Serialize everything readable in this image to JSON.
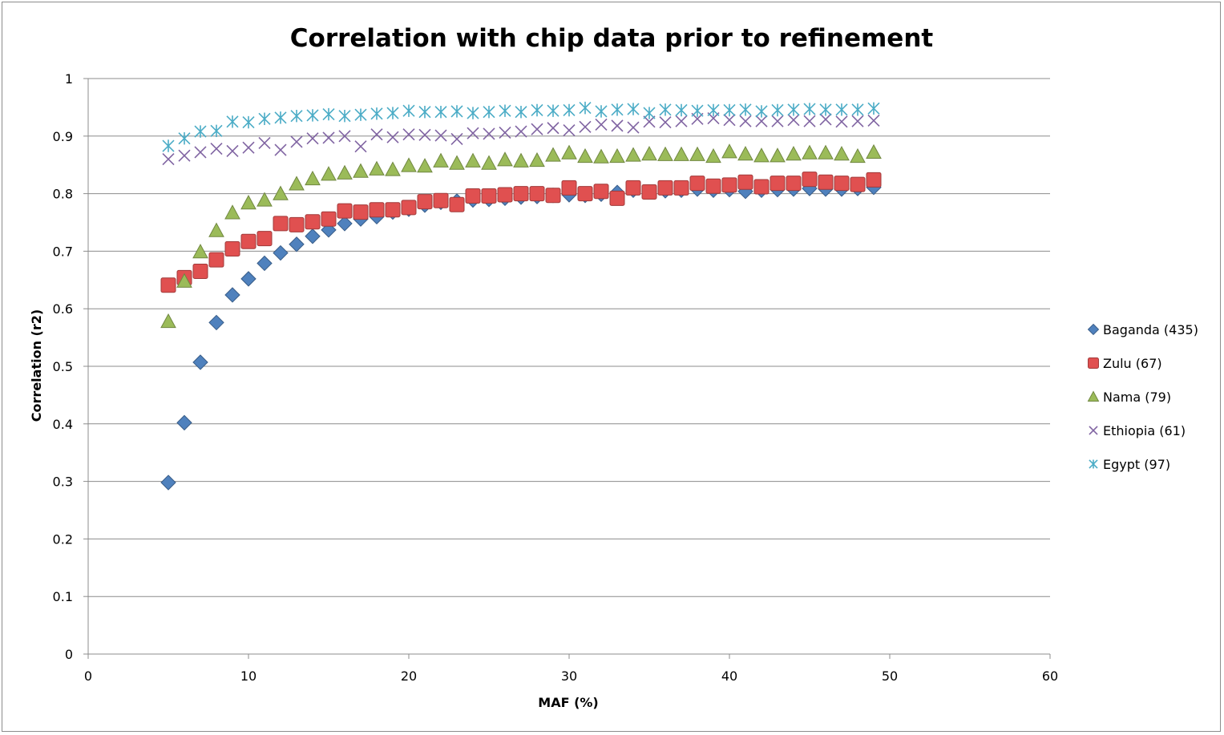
{
  "chart_data": {
    "type": "scatter",
    "title": "Correlation with chip data prior to refinement",
    "xlabel": "MAF (%)",
    "ylabel": "Correlation (r2)",
    "xlim": [
      0,
      60
    ],
    "ylim": [
      0,
      1
    ],
    "xticks": [
      "0",
      "10",
      "20",
      "30",
      "40",
      "50",
      "60"
    ],
    "yticks": [
      "0",
      "0.1",
      "0.2",
      "0.3",
      "0.4",
      "0.5",
      "0.6",
      "0.7",
      "0.8",
      "0.9",
      "1"
    ],
    "grid": "horizontal",
    "legend": "right",
    "x": [
      5,
      6,
      7,
      8,
      9,
      10,
      11,
      12,
      13,
      14,
      15,
      16,
      17,
      18,
      19,
      20,
      21,
      22,
      23,
      24,
      25,
      26,
      27,
      28,
      29,
      30,
      31,
      32,
      33,
      34,
      35,
      36,
      37,
      38,
      39,
      40,
      41,
      42,
      43,
      44,
      45,
      46,
      47,
      48,
      49
    ],
    "series": [
      {
        "name": "Baganda (435)",
        "marker": "diamond",
        "color": "#4f81bd",
        "values": [
          0.298,
          0.402,
          0.507,
          0.576,
          0.624,
          0.652,
          0.679,
          0.697,
          0.712,
          0.726,
          0.737,
          0.748,
          0.756,
          0.76,
          0.768,
          0.773,
          0.78,
          0.785,
          0.787,
          0.789,
          0.79,
          0.792,
          0.794,
          0.795,
          0.797,
          0.798,
          0.797,
          0.799,
          0.802,
          0.806,
          0.803,
          0.805,
          0.806,
          0.808,
          0.806,
          0.807,
          0.804,
          0.806,
          0.807,
          0.808,
          0.809,
          0.808,
          0.808,
          0.809,
          0.811
        ]
      },
      {
        "name": "Zulu (67)",
        "marker": "square",
        "color": "#e05050",
        "values": [
          0.641,
          0.654,
          0.665,
          0.685,
          0.704,
          0.717,
          0.722,
          0.748,
          0.746,
          0.751,
          0.756,
          0.77,
          0.768,
          0.772,
          0.772,
          0.776,
          0.786,
          0.788,
          0.781,
          0.796,
          0.796,
          0.798,
          0.8,
          0.8,
          0.797,
          0.81,
          0.8,
          0.804,
          0.792,
          0.81,
          0.803,
          0.81,
          0.81,
          0.818,
          0.813,
          0.815,
          0.82,
          0.812,
          0.818,
          0.818,
          0.825,
          0.82,
          0.818,
          0.816,
          0.824
        ]
      },
      {
        "name": "Nama (79)",
        "marker": "triangle",
        "color": "#9bbb59",
        "values": [
          0.578,
          0.648,
          0.699,
          0.736,
          0.767,
          0.784,
          0.789,
          0.8,
          0.817,
          0.826,
          0.834,
          0.836,
          0.839,
          0.843,
          0.842,
          0.849,
          0.848,
          0.857,
          0.853,
          0.857,
          0.853,
          0.859,
          0.857,
          0.858,
          0.867,
          0.871,
          0.865,
          0.864,
          0.865,
          0.867,
          0.869,
          0.868,
          0.868,
          0.868,
          0.865,
          0.873,
          0.869,
          0.866,
          0.866,
          0.869,
          0.871,
          0.871,
          0.869,
          0.865,
          0.872
        ]
      },
      {
        "name": "Ethiopia (61)",
        "marker": "x",
        "color": "#8064a2",
        "values": [
          0.86,
          0.866,
          0.872,
          0.878,
          0.874,
          0.88,
          0.888,
          0.876,
          0.89,
          0.896,
          0.897,
          0.9,
          0.882,
          0.903,
          0.898,
          0.903,
          0.902,
          0.901,
          0.895,
          0.905,
          0.904,
          0.906,
          0.908,
          0.912,
          0.914,
          0.91,
          0.916,
          0.92,
          0.918,
          0.915,
          0.925,
          0.924,
          0.926,
          0.93,
          0.931,
          0.928,
          0.926,
          0.926,
          0.926,
          0.928,
          0.926,
          0.929,
          0.925,
          0.926,
          0.927
        ]
      },
      {
        "name": "Egypt (97)",
        "marker": "asterisk",
        "color": "#4bacc6",
        "values": [
          0.883,
          0.896,
          0.908,
          0.909,
          0.925,
          0.924,
          0.93,
          0.932,
          0.935,
          0.936,
          0.938,
          0.935,
          0.937,
          0.939,
          0.94,
          0.944,
          0.942,
          0.942,
          0.943,
          0.94,
          0.942,
          0.944,
          0.942,
          0.945,
          0.944,
          0.945,
          0.949,
          0.943,
          0.946,
          0.947,
          0.94,
          0.946,
          0.945,
          0.944,
          0.945,
          0.945,
          0.946,
          0.943,
          0.945,
          0.946,
          0.947,
          0.946,
          0.946,
          0.946,
          0.948
        ]
      }
    ]
  }
}
